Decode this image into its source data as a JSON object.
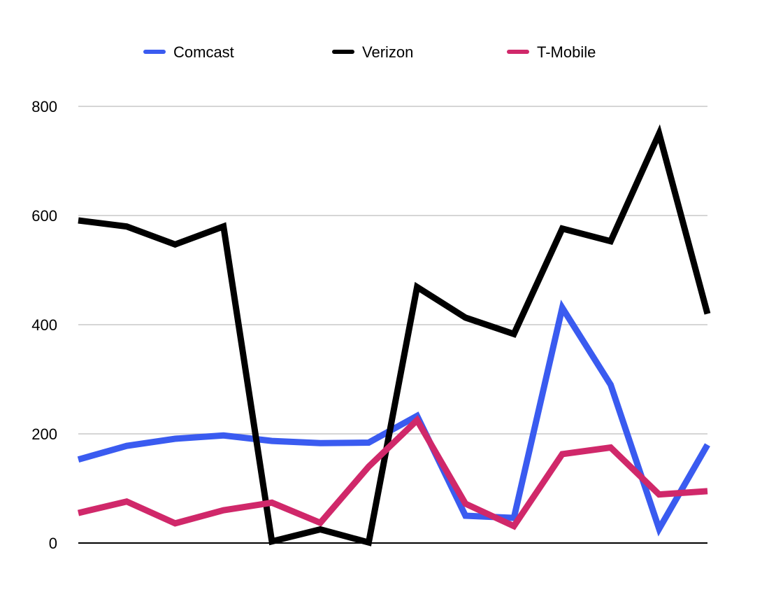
{
  "chart_data": {
    "type": "line",
    "title": "",
    "xlabel": "",
    "ylabel": "",
    "x": [
      1,
      2,
      3,
      4,
      5,
      6,
      7,
      8,
      9,
      10,
      11,
      12,
      13,
      14
    ],
    "ylim": [
      0,
      800
    ],
    "yticks": [
      0,
      200,
      400,
      600,
      800
    ],
    "grid": true,
    "legend_position": "top",
    "series": [
      {
        "name": "Comcast",
        "color": "#3a5bf0",
        "values": [
          153,
          178,
          191,
          197,
          187,
          183,
          184,
          233,
          50,
          46,
          431,
          290,
          26,
          180
        ]
      },
      {
        "name": "Verizon",
        "color": "#000000",
        "values": [
          591,
          580,
          547,
          580,
          3,
          25,
          1,
          469,
          413,
          383,
          576,
          553,
          750,
          420
        ]
      },
      {
        "name": "T-Mobile",
        "color": "#d0286a",
        "values": [
          55,
          76,
          36,
          60,
          74,
          37,
          140,
          225,
          72,
          31,
          163,
          175,
          89,
          95
        ]
      }
    ]
  }
}
